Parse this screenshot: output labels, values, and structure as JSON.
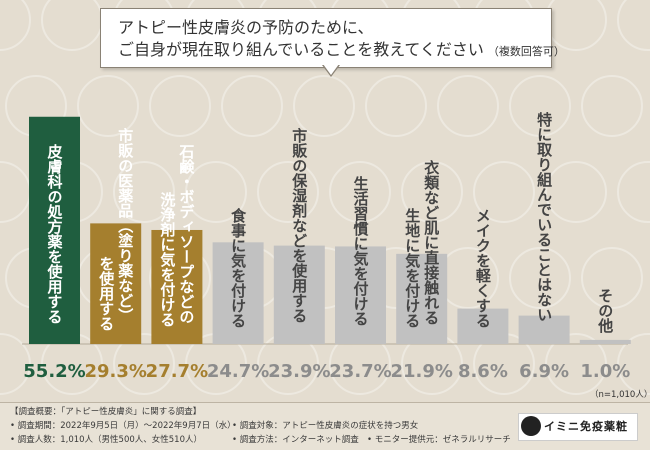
{
  "question": {
    "line1": "アトピー性皮膚炎の予防のために、",
    "line2": "ご自身が現在取り組んでいることを教えてください",
    "note": "（複数回答可）"
  },
  "chart_data": {
    "type": "bar",
    "categories": [
      "皮膚科の処方薬を使用する",
      "市販の医薬品（塗り薬など）を使用する",
      "石鹸・ボディソープなどの洗浄剤に気を付ける",
      "食事に気を付ける",
      "市販の保湿剤などを使用する",
      "生活習慣に気を付ける",
      "衣類など肌に直接触れる生地に気を付ける",
      "メイクを軽くする",
      "特に取り組んでいることはない",
      "その他"
    ],
    "label_lines": [
      [
        "皮膚科の処方薬を使用する"
      ],
      [
        "市販の医薬品（塗り薬など）",
        "を使用する"
      ],
      [
        "石鹸・ボディソープなどの",
        "洗浄剤に気を付ける"
      ],
      [
        "食事に気を付ける"
      ],
      [
        "市販の保湿剤などを使用する"
      ],
      [
        "生活習慣に気を付ける"
      ],
      [
        "衣類など肌に直接触れる",
        "生地に気を付ける"
      ],
      [
        "メイクを軽くする"
      ],
      [
        "特に取り組んでいることはない"
      ],
      [
        "その他"
      ]
    ],
    "values": [
      55.2,
      29.3,
      27.7,
      24.7,
      23.9,
      23.7,
      21.9,
      8.6,
      6.9,
      1.0
    ],
    "value_labels": [
      "55.2%",
      "29.3%",
      "27.7%",
      "24.7%",
      "23.9%",
      "23.7%",
      "21.9%",
      "8.6%",
      "6.9%",
      "1.0%"
    ],
    "ylim": [
      0,
      60
    ],
    "colors": [
      "#1f5e3f",
      "#a57f2e",
      "#a57f2e",
      "#c1c1c1",
      "#c1c1c1",
      "#c1c1c1",
      "#c1c1c1",
      "#c1c1c1",
      "#c1c1c1",
      "#c1c1c1"
    ],
    "value_colors": [
      "#1f5e3f",
      "#a57f2e",
      "#a57f2e",
      "#8c8c8c",
      "#8c8c8c",
      "#8c8c8c",
      "#8c8c8c",
      "#8c8c8c",
      "#8c8c8c",
      "#8c8c8c"
    ],
    "text_colors": [
      "#ffffff",
      "#a57f2e",
      "#a57f2e",
      "#444444",
      "#444444",
      "#444444",
      "#444444",
      "#444444",
      "#444444",
      "#444444"
    ],
    "highlighted_text_colors": [
      "#ffffff",
      "#ffffff",
      "#ffffff",
      null,
      null,
      null,
      null,
      null,
      null,
      null
    ],
    "sample_note": "（n=1,010人）"
  },
  "footer": {
    "line1": "【調査概要：「アトピー性皮膚炎」に関する調査】",
    "period": "• 調査期間：2022年9月5日（月）〜2022年9月7日（水）",
    "people": "• 調査人数：1,010人（男性500人、女性510人）",
    "target": "• 調査対象：アトピー性皮膚炎の症状を持つ男女",
    "method": "• 調査方法：インターネット調査",
    "provider": "• モニター提供元：ゼネラルリサーチ",
    "logo": "イミニ免疫薬粧"
  }
}
